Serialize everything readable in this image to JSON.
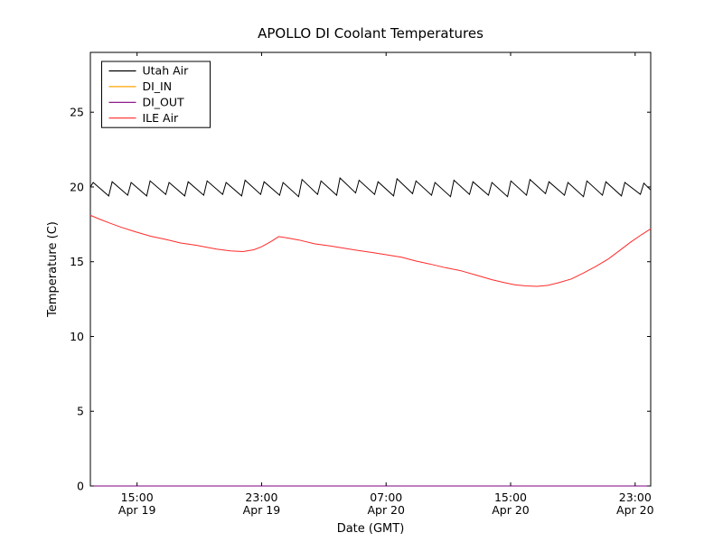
{
  "figure": {
    "background": "#ffffff",
    "axes_edge_color": "#000000"
  },
  "chart_data": {
    "type": "line",
    "title": "APOLLO DI Coolant Temperatures",
    "xlabel": "Date (GMT)",
    "ylabel": "Temperature (C)",
    "grid": false,
    "legend_position": "upper left",
    "xlim": [
      0,
      36
    ],
    "ylim": [
      0,
      29
    ],
    "x_ticks": [
      {
        "pos": 3,
        "time": "15:00",
        "date": "Apr 19"
      },
      {
        "pos": 11,
        "time": "23:00",
        "date": "Apr 19"
      },
      {
        "pos": 19,
        "time": "07:00",
        "date": "Apr 20"
      },
      {
        "pos": 27,
        "time": "15:00",
        "date": "Apr 20"
      },
      {
        "pos": 35,
        "time": "23:00",
        "date": "Apr 20"
      }
    ],
    "y_ticks": [
      0,
      5,
      10,
      15,
      20,
      25
    ],
    "series": [
      {
        "name": "Utah Air",
        "color": "#000000",
        "points": [
          [
            0,
            20.0
          ],
          [
            0.18,
            20.3
          ],
          [
            1.18,
            19.4
          ],
          [
            1.4,
            20.35
          ],
          [
            2.4,
            19.45
          ],
          [
            2.62,
            20.3
          ],
          [
            3.62,
            19.4
          ],
          [
            3.84,
            20.4
          ],
          [
            4.84,
            19.5
          ],
          [
            5.06,
            20.3
          ],
          [
            6.06,
            19.4
          ],
          [
            6.28,
            20.35
          ],
          [
            7.28,
            19.45
          ],
          [
            7.5,
            20.4
          ],
          [
            8.5,
            19.5
          ],
          [
            8.72,
            20.3
          ],
          [
            9.72,
            19.4
          ],
          [
            9.94,
            20.45
          ],
          [
            10.94,
            19.5
          ],
          [
            11.16,
            20.35
          ],
          [
            12.16,
            19.45
          ],
          [
            12.38,
            20.3
          ],
          [
            13.38,
            19.35
          ],
          [
            13.6,
            20.5
          ],
          [
            14.6,
            19.5
          ],
          [
            14.82,
            20.4
          ],
          [
            15.82,
            19.45
          ],
          [
            16.04,
            20.6
          ],
          [
            17.04,
            19.6
          ],
          [
            17.26,
            20.45
          ],
          [
            18.26,
            19.5
          ],
          [
            18.48,
            20.35
          ],
          [
            19.48,
            19.4
          ],
          [
            19.7,
            20.55
          ],
          [
            20.7,
            19.55
          ],
          [
            20.92,
            20.4
          ],
          [
            21.92,
            19.45
          ],
          [
            22.14,
            20.3
          ],
          [
            23.14,
            19.35
          ],
          [
            23.36,
            20.45
          ],
          [
            24.36,
            19.5
          ],
          [
            24.58,
            20.35
          ],
          [
            25.58,
            19.45
          ],
          [
            25.8,
            20.3
          ],
          [
            26.8,
            19.35
          ],
          [
            27.02,
            20.4
          ],
          [
            28.02,
            19.45
          ],
          [
            28.24,
            20.5
          ],
          [
            29.24,
            19.55
          ],
          [
            29.46,
            20.35
          ],
          [
            30.46,
            19.45
          ],
          [
            30.68,
            20.3
          ],
          [
            31.68,
            19.35
          ],
          [
            31.9,
            20.4
          ],
          [
            32.9,
            19.45
          ],
          [
            33.12,
            20.35
          ],
          [
            34.12,
            19.4
          ],
          [
            34.34,
            20.3
          ],
          [
            35.34,
            19.5
          ],
          [
            35.56,
            20.25
          ],
          [
            36,
            19.8
          ]
        ]
      },
      {
        "name": "DI_IN",
        "color": "#ffa500",
        "points": [
          [
            0,
            0
          ],
          [
            36,
            0
          ]
        ]
      },
      {
        "name": "DI_OUT",
        "color": "#800080",
        "points": [
          [
            0,
            0
          ],
          [
            36,
            0
          ]
        ]
      },
      {
        "name": "ILE Air",
        "color": "#ff2a2a",
        "points": [
          [
            0,
            18.1
          ],
          [
            0.6,
            17.85
          ],
          [
            1.2,
            17.6
          ],
          [
            2,
            17.3
          ],
          [
            2.9,
            17.0
          ],
          [
            3.9,
            16.7
          ],
          [
            4.8,
            16.5
          ],
          [
            5.8,
            16.25
          ],
          [
            6.8,
            16.1
          ],
          [
            8.1,
            15.85
          ],
          [
            9,
            15.72
          ],
          [
            9.8,
            15.68
          ],
          [
            10.5,
            15.8
          ],
          [
            11,
            16.0
          ],
          [
            11.6,
            16.35
          ],
          [
            12.1,
            16.68
          ],
          [
            12.6,
            16.6
          ],
          [
            13.4,
            16.45
          ],
          [
            14.4,
            16.2
          ],
          [
            15.4,
            16.05
          ],
          [
            16.3,
            15.9
          ],
          [
            17.2,
            15.75
          ],
          [
            18.2,
            15.6
          ],
          [
            19.1,
            15.45
          ],
          [
            20,
            15.3
          ],
          [
            20.9,
            15.05
          ],
          [
            21.8,
            14.85
          ],
          [
            22.8,
            14.6
          ],
          [
            23.8,
            14.4
          ],
          [
            24.8,
            14.1
          ],
          [
            25.8,
            13.8
          ],
          [
            26.6,
            13.6
          ],
          [
            27.3,
            13.45
          ],
          [
            28,
            13.38
          ],
          [
            28.7,
            13.35
          ],
          [
            29.4,
            13.42
          ],
          [
            30.1,
            13.6
          ],
          [
            30.9,
            13.85
          ],
          [
            31.7,
            14.25
          ],
          [
            32.5,
            14.7
          ],
          [
            33.3,
            15.2
          ],
          [
            34,
            15.75
          ],
          [
            34.7,
            16.3
          ],
          [
            35.4,
            16.8
          ],
          [
            36,
            17.2
          ]
        ]
      }
    ]
  }
}
